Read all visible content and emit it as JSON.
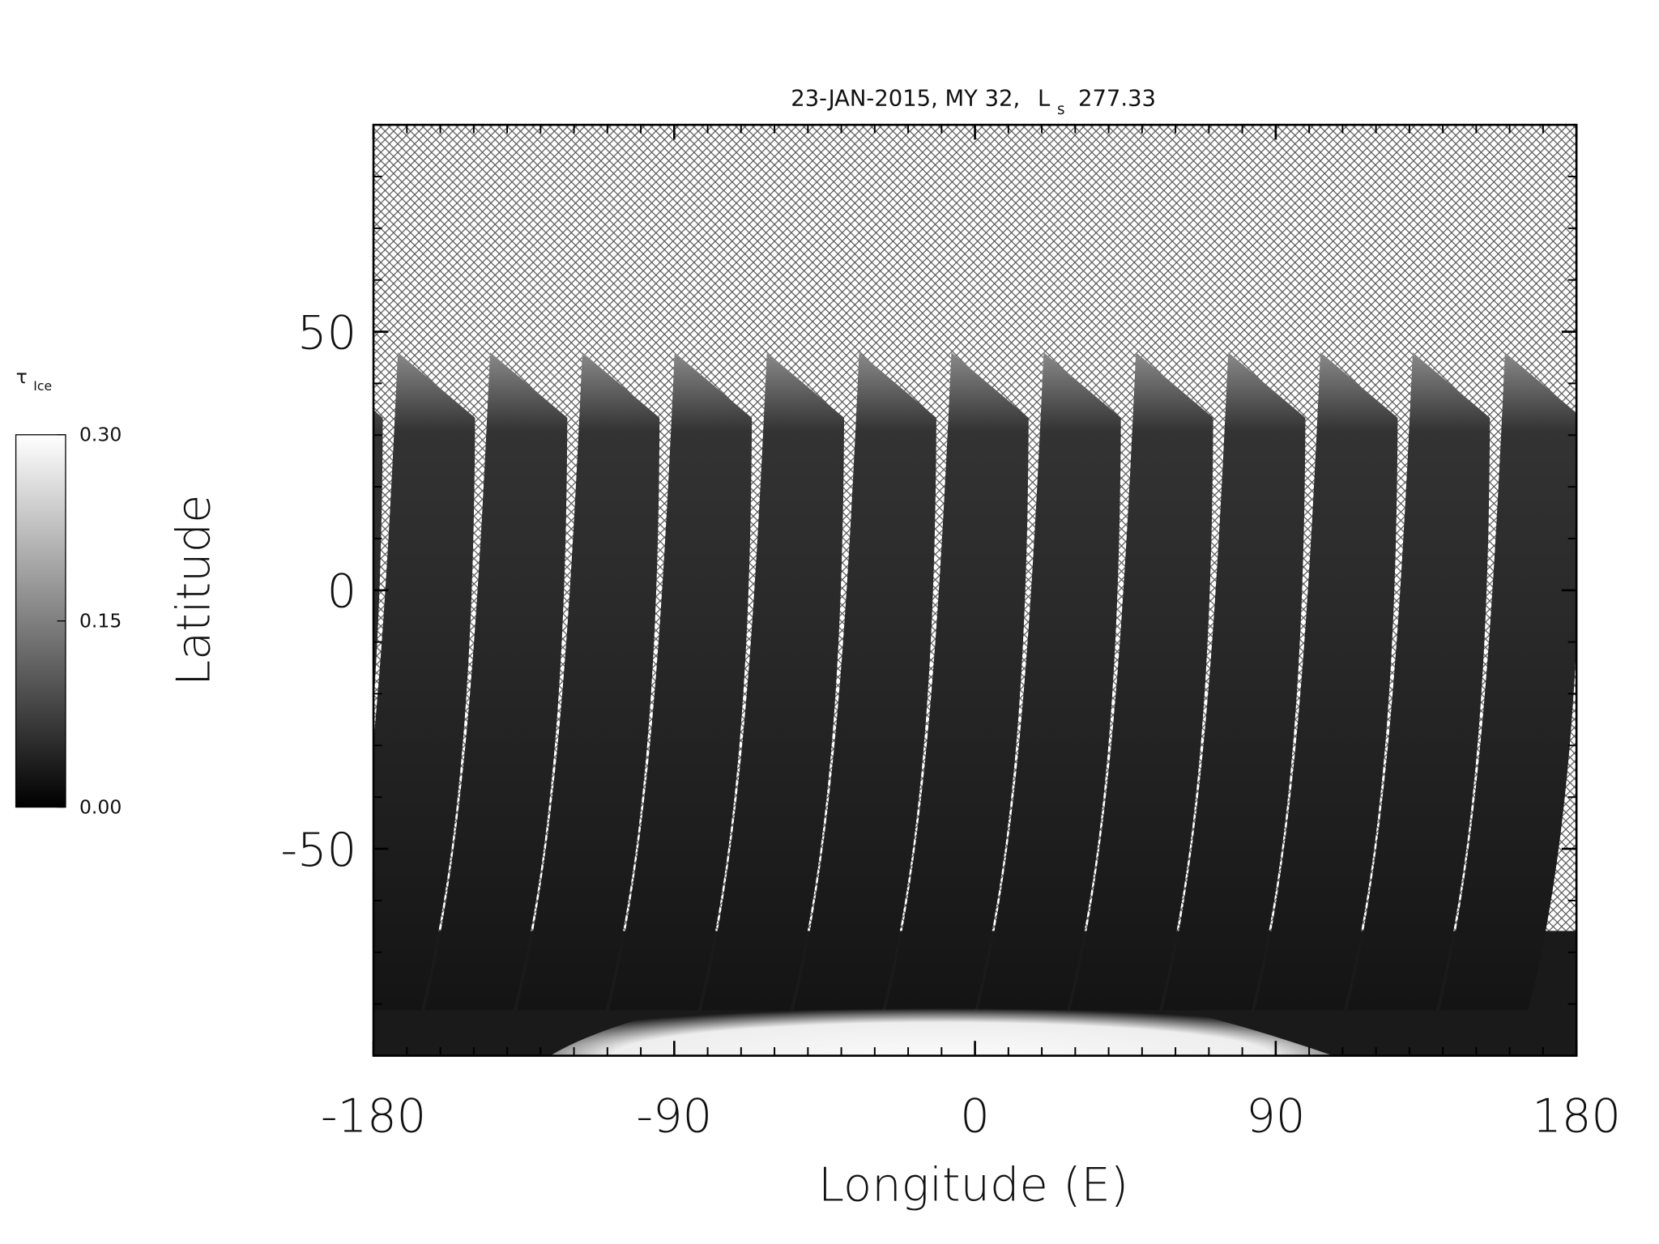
{
  "chart_data": {
    "type": "image",
    "title": [
      "23-JAN-2015, MY 32,",
      "L",
      "s",
      "277.33"
    ],
    "xlabel": "Longitude (E)",
    "ylabel": "Latitude",
    "xlim": [
      -180,
      180
    ],
    "ylim": [
      -90,
      90
    ],
    "xticks": [
      -180,
      -90,
      0,
      90,
      180
    ],
    "yticks": [
      -50,
      0,
      50
    ],
    "xminorticks": [
      -170,
      -160,
      -150,
      -140,
      -130,
      -120,
      -110,
      -100,
      -80,
      -70,
      -60,
      -50,
      -40,
      -30,
      -20,
      -10,
      10,
      20,
      30,
      40,
      50,
      60,
      70,
      80,
      100,
      110,
      120,
      130,
      140,
      150,
      160,
      170
    ],
    "yminorticks": [
      -80,
      -70,
      -60,
      -40,
      -30,
      -20,
      -10,
      10,
      20,
      30,
      40,
      60,
      70,
      80
    ],
    "colorbar": {
      "label": "τ",
      "label_sub": "Ice",
      "clim": [
        0,
        0.3
      ],
      "ticks": [
        {
          "value": 0,
          "label": "0.00"
        },
        0.15,
        {
          "value": 0.3,
          "label": "0.30"
        }
      ],
      "colors": [
        "#000000",
        "#ffffff"
      ]
    }
  }
}
